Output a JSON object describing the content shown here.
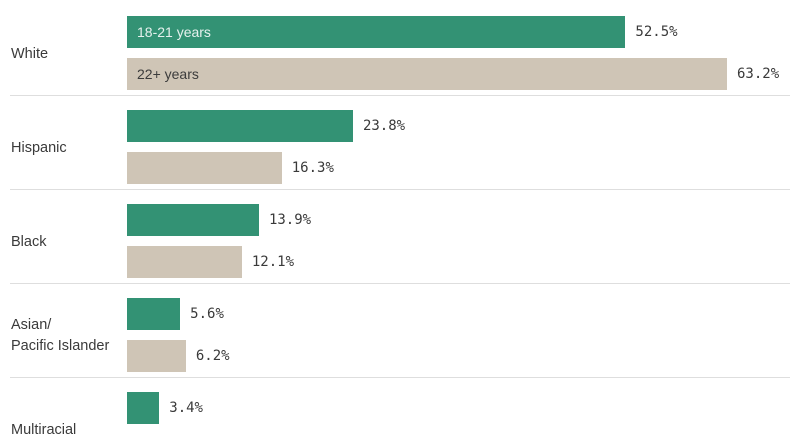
{
  "chart_data": {
    "type": "bar",
    "orientation": "horizontal",
    "categories": [
      "White",
      "Hispanic",
      "Black",
      "Asian/\nPacific Islander",
      "Multiracial"
    ],
    "series": [
      {
        "name": "18-21 years",
        "color": "#339274",
        "values": [
          52.5,
          23.8,
          13.9,
          5.6,
          3.4
        ]
      },
      {
        "name": "22+ years",
        "color": "#cfc5b6",
        "values": [
          63.2,
          16.3,
          12.1,
          6.2,
          null
        ]
      }
    ],
    "value_suffix": "%",
    "xlim": [
      0,
      63.2
    ],
    "legend": "inside-first-bars",
    "grid": false
  }
}
